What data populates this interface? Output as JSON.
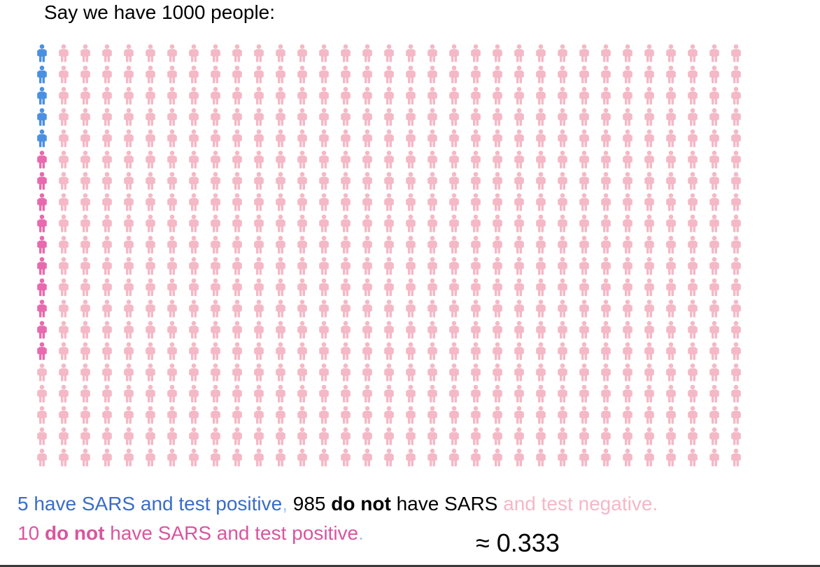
{
  "title": "Say we have 1000 people:",
  "grid": {
    "columns": 33,
    "rows": 20,
    "positive_sars_count": 5,
    "false_positive_count": 10,
    "colors": {
      "positive_sars": "#4a90e2",
      "false_positive": "#e86aae",
      "negative": "#f4b8c6"
    }
  },
  "caption": {
    "line1": {
      "part1": "5 have SARS and test positive",
      "part1_color": "#3a6cc9",
      "comma": ",",
      "comma_color": "#a5c6ee",
      "part2_prefix": " 985 ",
      "part2_bold": "do not",
      "part2_suffix": " have SARS",
      "part3": " and test negative.",
      "part3_color": "#f4b8c6"
    },
    "line2": {
      "number": "10 ",
      "bold": "do not",
      "rest": " have SARS and test positive",
      "color": "#d9559f",
      "period": ".",
      "period_color": "#a5c6ee"
    }
  },
  "result": "≈ 0.333"
}
